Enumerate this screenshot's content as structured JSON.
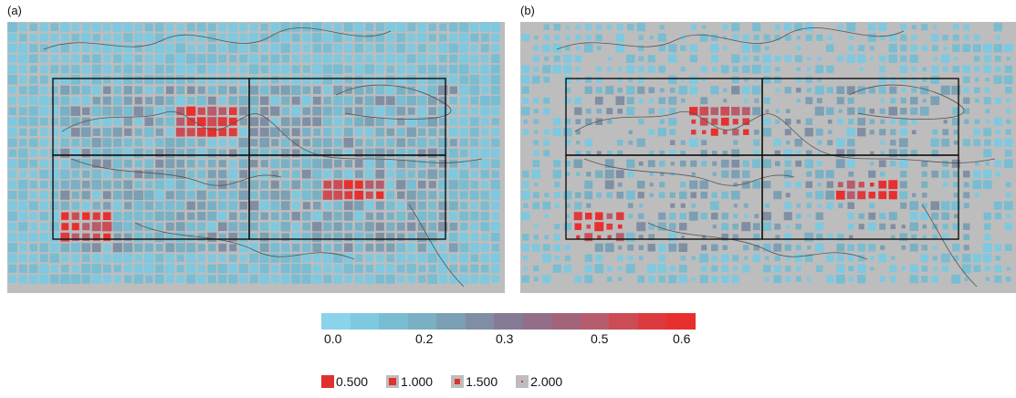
{
  "panels": [
    {
      "label": "(a)"
    },
    {
      "label": "(b)"
    }
  ],
  "colorbar": {
    "colors": [
      "#8ad3ea",
      "#7fc9e0",
      "#79bdd2",
      "#79b0c4",
      "#7b9fb3",
      "#7f8ea3",
      "#867b96",
      "#926e89",
      "#a2647b",
      "#b75c6c",
      "#cc4c55",
      "#dd3a3e",
      "#e82f2f"
    ],
    "ticks": [
      "0.0",
      "0.2",
      "0.3",
      "0.5",
      "0.6"
    ]
  },
  "size_legend": [
    "0.500",
    "1.000",
    "1.500",
    "2.000"
  ],
  "colors": {
    "background": "#bdbdbd",
    "box_line": "#111111",
    "coast": "#555555"
  }
}
